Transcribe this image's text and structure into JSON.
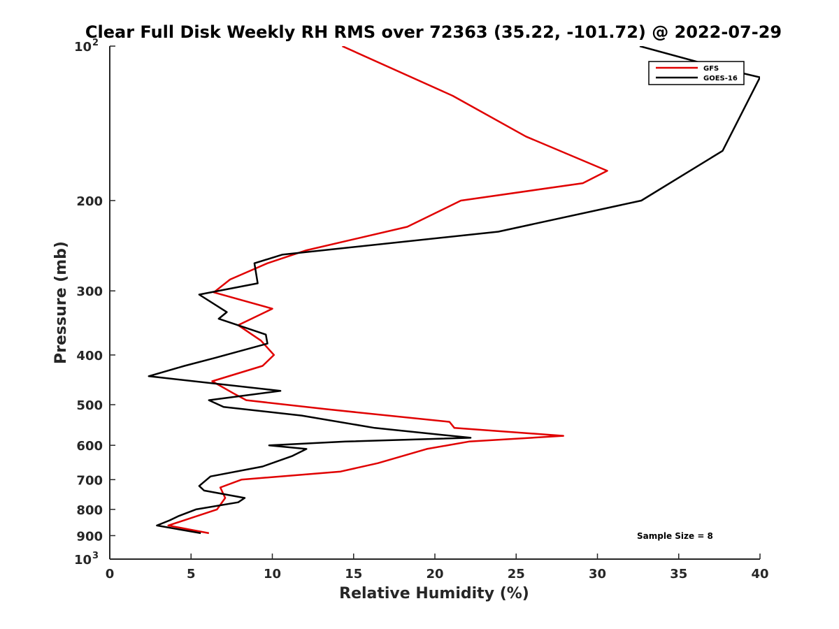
{
  "chart_data": {
    "type": "line",
    "title": "Clear Full Disk Weekly RH RMS over 72363 (35.22, -101.72) @ 2022-07-29",
    "xlabel": "Relative Humidity (%)",
    "ylabel": "Pressure (mb)",
    "xlim": [
      0,
      40
    ],
    "ylim": [
      100,
      1000
    ],
    "y_scale": "log",
    "y_reversed": true,
    "x_ticks": [
      "0",
      "5",
      "10",
      "15",
      "20",
      "25",
      "30",
      "35",
      "40"
    ],
    "y_ticks": [
      {
        "value": 100,
        "base": "10",
        "exp": "2"
      },
      {
        "value": 200,
        "label": "200"
      },
      {
        "value": 300,
        "label": "300"
      },
      {
        "value": 400,
        "label": "400"
      },
      {
        "value": 500,
        "label": "500"
      },
      {
        "value": 600,
        "label": "600"
      },
      {
        "value": 700,
        "label": "700"
      },
      {
        "value": 800,
        "label": "800"
      },
      {
        "value": 900,
        "label": "900"
      },
      {
        "value": 1000,
        "base": "10",
        "exp": "3"
      }
    ],
    "legend": {
      "position": "top-right",
      "entries": [
        "GFS",
        "GOES-16"
      ]
    },
    "annotation": "Sample Size = 8",
    "series": [
      {
        "name": "GFS",
        "color": "#e00000",
        "x": [
          14.3,
          21.1,
          25.6,
          30.6,
          29.1,
          21.6,
          18.3,
          12.1,
          9.7,
          7.4,
          6.4,
          10.0,
          7.9,
          9.3,
          10.1,
          9.4,
          6.3,
          7.6,
          8.4,
          13.3,
          20.9,
          21.2,
          27.9,
          22.1,
          19.5,
          16.5,
          14.2,
          8.1,
          6.8,
          7.1,
          6.6,
          3.6,
          6.1
        ],
        "y": [
          100,
          125,
          150,
          175,
          185,
          200,
          225,
          250,
          265,
          285,
          302,
          325,
          350,
          375,
          400,
          420,
          450,
          475,
          490,
          510,
          540,
          555,
          575,
          590,
          610,
          650,
          675,
          700,
          725,
          760,
          800,
          860,
          890
        ]
      },
      {
        "name": "GOES-16",
        "color": "#000000",
        "x": [
          32.6,
          37.4,
          40.0,
          37.7,
          32.7,
          23.9,
          10.6,
          8.9,
          9.1,
          5.5,
          7.2,
          6.7,
          9.6,
          9.7,
          6.5,
          4.6,
          2.4,
          10.5,
          6.1,
          7.0,
          11.8,
          16.3,
          22.2,
          14.5,
          9.8,
          12.1,
          11.2,
          9.4,
          6.2,
          5.5,
          5.8,
          8.3,
          7.9,
          5.3,
          4.2,
          3.7,
          2.9,
          5.6
        ],
        "y": [
          100,
          110,
          115,
          160,
          200,
          230,
          255,
          265,
          290,
          305,
          330,
          340,
          365,
          380,
          405,
          420,
          440,
          470,
          490,
          505,
          525,
          555,
          580,
          590,
          600,
          610,
          630,
          660,
          690,
          720,
          735,
          760,
          775,
          800,
          825,
          840,
          860,
          890
        ]
      }
    ]
  }
}
